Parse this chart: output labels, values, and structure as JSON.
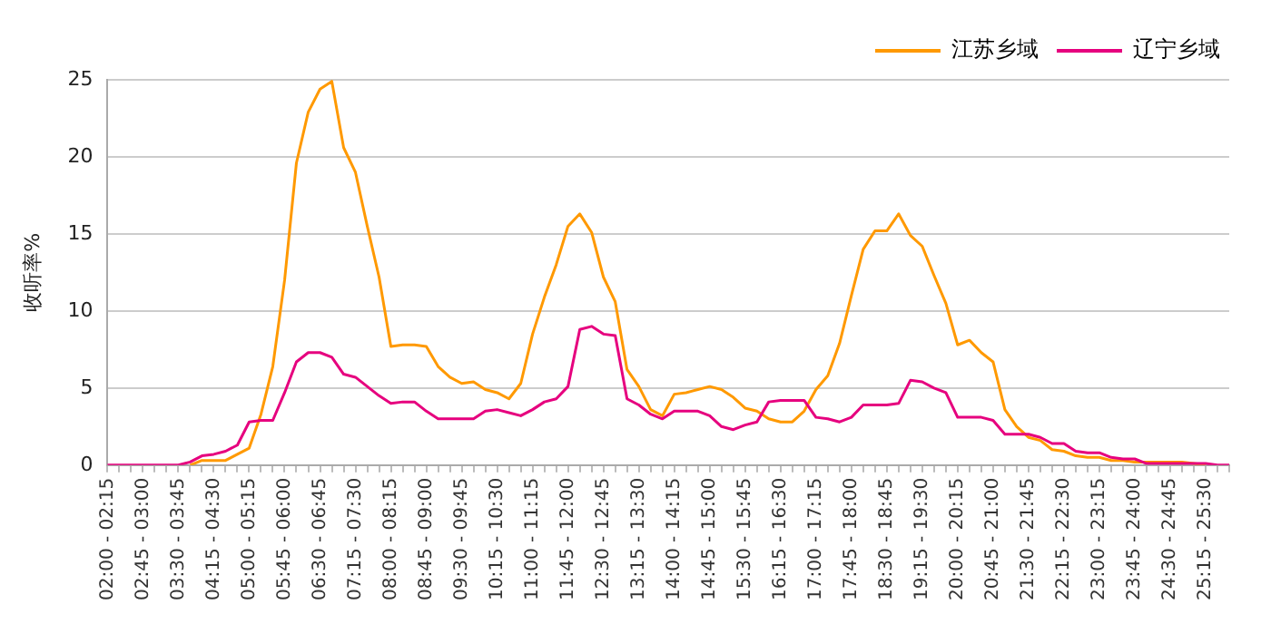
{
  "chart_data": {
    "type": "line",
    "ylabel": "收听率%",
    "categories": [
      "02:00 - 02:15",
      null,
      null,
      "02:45 - 03:00",
      null,
      null,
      "03:30 - 03:45",
      null,
      null,
      "04:15 - 04:30",
      null,
      null,
      "05:00 - 05:15",
      null,
      null,
      "05:45 - 06:00",
      null,
      null,
      "06:30 - 06:45",
      null,
      null,
      "07:15 - 07:30",
      null,
      null,
      "08:00 - 08:15",
      null,
      null,
      "08:45 - 09:00",
      null,
      null,
      "09:30 - 09:45",
      null,
      null,
      "10:15 - 10:30",
      null,
      null,
      "11:00 - 11:15",
      null,
      null,
      "11:45 - 12:00",
      null,
      null,
      "12:30 - 12:45",
      null,
      null,
      "13:15 - 13:30",
      null,
      null,
      "14:00 - 14:15",
      null,
      null,
      "14:45 - 15:00",
      null,
      null,
      "15:30 - 15:45",
      null,
      null,
      "16:15 - 16:30",
      null,
      null,
      "17:00 - 17:15",
      null,
      null,
      "17:45 - 18:00",
      null,
      null,
      "18:30 - 18:45",
      null,
      null,
      "19:15 - 19:30",
      null,
      null,
      "20:00 - 20:15",
      null,
      null,
      "20:45 - 21:00",
      null,
      null,
      "21:30 - 21:45",
      null,
      null,
      "22:15 - 22:30",
      null,
      null,
      "23:00 - 23:15",
      null,
      null,
      "23:45 - 24:00",
      null,
      null,
      "24:30 - 24:45",
      null,
      null,
      "25:15 - 25:30",
      null,
      null
    ],
    "series": [
      {
        "name": "江苏乡域",
        "color": "#ff9900",
        "values": [
          null,
          null,
          null,
          null,
          null,
          null,
          null,
          0,
          0.3,
          0.3,
          0.3,
          0.7,
          1.1,
          3.3,
          6.4,
          12.0,
          19.6,
          22.9,
          24.4,
          24.9,
          20.6,
          19.0,
          15.5,
          12.2,
          7.7,
          7.8,
          7.8,
          7.7,
          6.4,
          5.7,
          5.3,
          5.4,
          4.9,
          4.7,
          4.3,
          5.3,
          8.5,
          10.9,
          13.0,
          15.5,
          16.3,
          15.1,
          12.2,
          10.6,
          6.2,
          5.1,
          3.6,
          3.2,
          4.6,
          4.7,
          4.9,
          5.1,
          4.9,
          4.4,
          3.7,
          3.5,
          3.0,
          2.8,
          2.8,
          3.5,
          4.9,
          5.8,
          7.9,
          11.0,
          14.0,
          15.2,
          15.2,
          16.3,
          14.9,
          14.2,
          12.3,
          10.5,
          7.8,
          8.1,
          7.3,
          6.7,
          3.6,
          2.5,
          1.8,
          1.6,
          1.0,
          0.9,
          0.6,
          0.5,
          0.5,
          0.3,
          0.3,
          0.2,
          0.2,
          0.2,
          0.2,
          0.2,
          0.1,
          0,
          null,
          null
        ]
      },
      {
        "name": "辽宁乡域",
        "color": "#e6007e",
        "values": [
          0,
          0,
          0,
          0,
          0,
          0,
          0,
          0.2,
          0.6,
          0.7,
          0.9,
          1.3,
          2.8,
          2.9,
          2.9,
          4.7,
          6.7,
          7.3,
          7.3,
          7.0,
          5.9,
          5.7,
          5.1,
          4.5,
          4.0,
          4.1,
          4.1,
          3.5,
          3.0,
          3.0,
          3.0,
          3.0,
          3.5,
          3.6,
          3.4,
          3.2,
          3.6,
          4.1,
          4.3,
          5.1,
          8.8,
          9.0,
          8.5,
          8.4,
          4.3,
          3.9,
          3.3,
          3.0,
          3.5,
          3.5,
          3.5,
          3.2,
          2.5,
          2.3,
          2.6,
          2.8,
          4.1,
          4.2,
          4.2,
          4.2,
          3.1,
          3.0,
          2.8,
          3.1,
          3.9,
          3.9,
          3.9,
          4.0,
          5.5,
          5.4,
          5.0,
          4.7,
          3.1,
          3.1,
          3.1,
          2.9,
          2.0,
          2.0,
          2.0,
          1.8,
          1.4,
          1.4,
          0.9,
          0.8,
          0.8,
          0.5,
          0.4,
          0.4,
          0.1,
          0.1,
          0.1,
          0.1,
          0.1,
          0.1,
          0,
          0
        ]
      }
    ],
    "ylim": [
      0,
      25
    ],
    "yticks": [
      0,
      5,
      10,
      15,
      20,
      25
    ],
    "grid": "y",
    "legend": "top right",
    "marker": "none",
    "line_style": "solid"
  }
}
